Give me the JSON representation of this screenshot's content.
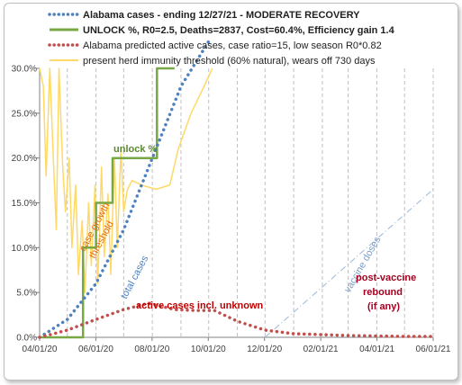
{
  "chart_data": {
    "type": "line",
    "title": "",
    "xlabel": "",
    "ylabel": "",
    "ylim": [
      0,
      0.3
    ],
    "xlim": [
      "2020-04-01",
      "2021-06-01"
    ],
    "x_ticks": [
      "04/01/20",
      "06/01/20",
      "08/01/20",
      "10/01/20",
      "12/01/20",
      "02/01/21",
      "04/01/21",
      "06/01/21"
    ],
    "y_ticks": [
      "0.0%",
      "5.0%",
      "10.0%",
      "15.0%",
      "20.0%",
      "25.0%",
      "30.0%"
    ],
    "grid": "vertical dashed gridlines at month starts",
    "legend_position": "top",
    "legend": [
      {
        "label": "Alabama cases - ending 12/27/21 - MODERATE RECOVERY",
        "style": "dotted",
        "color": "#4f81bd",
        "bold": true
      },
      {
        "label": "UNLOCK %, R0=2.5,  Deaths=2837, Cost=60.4%, Efficiency gain 1.4",
        "style": "solid",
        "color": "#77a843",
        "bold": true
      },
      {
        "label": "Alabama predicted active cases, case ratio=15, low season R0*0.82",
        "style": "dotted",
        "color": "#c0504d",
        "bold": false
      },
      {
        "label": "present herd immunity threshold (60% natural), wears off 730 days",
        "style": "solid",
        "color": "#ffd966",
        "bold": false
      }
    ],
    "series": [
      {
        "name": "Alabama cases - ending 12/27/21 - MODERATE RECOVERY",
        "color": "#4f81bd",
        "style": "dotted",
        "x": [
          "2020-04-01",
          "2020-05-01",
          "2020-06-01",
          "2020-07-01",
          "2020-08-01",
          "2020-09-01",
          "2020-10-01"
        ],
        "values": [
          0.0,
          0.02,
          0.06,
          0.12,
          0.2,
          0.28,
          0.33
        ]
      },
      {
        "name": "UNLOCK %, R0=2.5,  Deaths=2837, Cost=60.4%, Efficiency gain 1.4",
        "color": "#77a843",
        "style": "step",
        "x": [
          "2020-04-01",
          "2020-05-18",
          "2020-05-18",
          "2020-06-01",
          "2020-06-01",
          "2020-06-19",
          "2020-06-19",
          "2020-08-06",
          "2020-08-06",
          "2020-08-25"
        ],
        "values": [
          0.0,
          0.0,
          0.1,
          0.1,
          0.15,
          0.15,
          0.2,
          0.2,
          0.3,
          0.3
        ]
      },
      {
        "name": "Alabama predicted active cases, case ratio=15, low season R0*0.82",
        "color": "#c0504d",
        "style": "dotted",
        "x": [
          "2020-04-01",
          "2020-05-01",
          "2020-06-01",
          "2020-07-01",
          "2020-07-28",
          "2020-08-25",
          "2020-09-15",
          "2020-10-07",
          "2020-11-01",
          "2020-12-01",
          "2021-01-01",
          "2021-02-01",
          "2021-03-01",
          "2021-04-01",
          "2021-05-01",
          "2021-06-01"
        ],
        "values": [
          0.0,
          0.008,
          0.02,
          0.031,
          0.038,
          0.031,
          0.03,
          0.03,
          0.018,
          0.008,
          0.004,
          0.003,
          0.002,
          0.0015,
          0.001,
          0.001
        ]
      },
      {
        "name": "present herd immunity threshold (60% natural), wears off 730 days",
        "color": "#ffd966",
        "style": "solid",
        "x": [
          "2020-04-01",
          "2020-04-05",
          "2020-04-08",
          "2020-04-12",
          "2020-04-15",
          "2020-04-19",
          "2020-04-22",
          "2020-04-26",
          "2020-04-29",
          "2020-05-03",
          "2020-05-06",
          "2020-05-10",
          "2020-05-13",
          "2020-05-17",
          "2020-05-20",
          "2020-05-24",
          "2020-05-27",
          "2020-05-31",
          "2020-06-03",
          "2020-06-07",
          "2020-06-10",
          "2020-06-14",
          "2020-06-17",
          "2020-06-21",
          "2020-06-24",
          "2020-06-28",
          "2020-07-01",
          "2020-07-05",
          "2020-07-10",
          "2020-07-20",
          "2020-08-05",
          "2020-08-20",
          "2020-08-29",
          "2020-09-12",
          "2020-09-26",
          "2020-10-05"
        ],
        "values": [
          0.3,
          0.28,
          0.18,
          0.3,
          0.22,
          0.12,
          0.3,
          0.19,
          0.14,
          0.2,
          0.1,
          0.17,
          0.07,
          0.13,
          0.05,
          0.15,
          0.08,
          0.17,
          0.06,
          0.19,
          0.09,
          0.16,
          0.07,
          0.2,
          0.1,
          0.21,
          0.14,
          0.165,
          0.175,
          0.17,
          0.165,
          0.17,
          0.21,
          0.25,
          0.28,
          0.3
        ]
      },
      {
        "name": "vaccine doses",
        "color": "#9bb7d9",
        "style": "dash-dot",
        "x": [
          "2020-12-01",
          "2021-06-01"
        ],
        "values": [
          0.0,
          0.165
        ]
      }
    ],
    "annotations": [
      {
        "text": "unlock %",
        "color": "#5a8a2e"
      },
      {
        "text": "case growth",
        "color": "#e36c09"
      },
      {
        "text": "threshold",
        "color": "#e36c09"
      },
      {
        "text": "total cases",
        "color": "#4f81bd"
      },
      {
        "text": "vaccine doses",
        "color": "#7a9cc7"
      },
      {
        "text": "active cases incl. unknown",
        "color": "#c00000"
      },
      {
        "text": "post-vaccine",
        "color": "#a50021"
      },
      {
        "text": "rebound",
        "color": "#a50021"
      },
      {
        "text": "(if any)",
        "color": "#a50021"
      }
    ]
  }
}
